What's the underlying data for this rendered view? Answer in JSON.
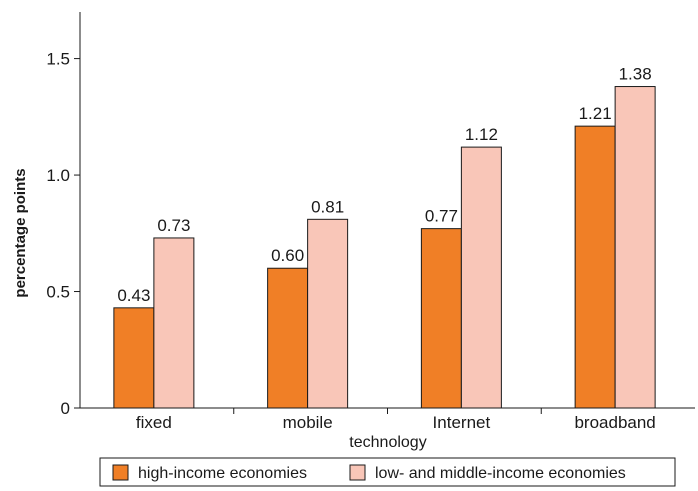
{
  "chart_data": {
    "type": "bar",
    "categories": [
      "fixed",
      "mobile",
      "Internet",
      "broadband"
    ],
    "series": [
      {
        "name": "high-income economies",
        "values": [
          0.43,
          0.6,
          0.77,
          1.21
        ],
        "labels": [
          "0.43",
          "0.60",
          "0.77",
          "1.21"
        ],
        "color": "#f07f26"
      },
      {
        "name": "low- and middle-income economies",
        "values": [
          0.73,
          0.81,
          1.12,
          1.38
        ],
        "labels": [
          "0.73",
          "0.81",
          "1.12",
          "1.38"
        ],
        "color": "#f9c6b8"
      }
    ],
    "xlabel": "technology",
    "ylabel": "percentage points",
    "ylim": [
      0,
      1.7
    ],
    "yticks": [
      0,
      0.5,
      1.0,
      1.5
    ],
    "ytick_labels": [
      "0",
      "0.5",
      "1.0",
      "1.5"
    ],
    "grid": false,
    "legend_position": "bottom"
  }
}
